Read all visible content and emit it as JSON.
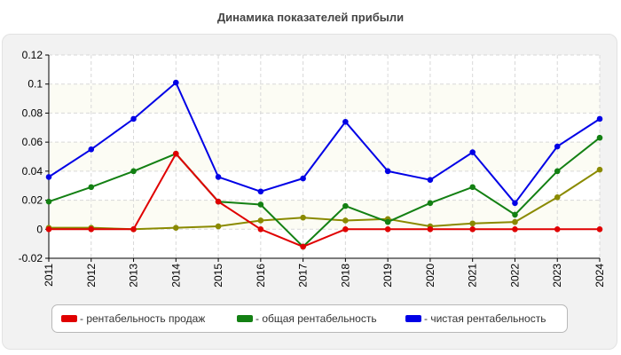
{
  "chart_data": {
    "type": "line",
    "title": "Динамика показателей прибыли",
    "xlabel": "",
    "ylabel": "",
    "x": [
      "2011",
      "2012",
      "2013",
      "2014",
      "2015",
      "2016",
      "2017",
      "2018",
      "2019",
      "2020",
      "2021",
      "2022",
      "2023",
      "2024"
    ],
    "y_ticks": [
      "0.12",
      "0.1",
      "0.08",
      "0.06",
      "0.04",
      "0.02",
      "0",
      "-0.02"
    ],
    "ylim": [
      -0.02,
      0.12
    ],
    "grid": true,
    "legend_position": "bottom",
    "series": [
      {
        "name": "- рентабельность продаж",
        "color": "#e00000",
        "values": [
          0.0,
          0.0,
          0.0,
          0.052,
          0.019,
          0.0,
          -0.012,
          0.0,
          0.0,
          0.0,
          0.0,
          0.0,
          0.0,
          0.0
        ]
      },
      {
        "name": "- общая рентабельность",
        "color": "#138013",
        "values": [
          0.019,
          0.029,
          0.04,
          0.052,
          0.019,
          0.017,
          -0.012,
          0.016,
          0.005,
          0.018,
          0.029,
          0.01,
          0.04,
          0.063
        ]
      },
      {
        "name": "- чистая рентабельность",
        "color": "#0000e6",
        "values": [
          0.036,
          0.055,
          0.076,
          0.101,
          0.036,
          0.026,
          0.035,
          0.074,
          0.04,
          0.034,
          0.053,
          0.018,
          0.057,
          0.076
        ]
      },
      {
        "name": "",
        "color": "#8a8a00",
        "values": [
          0.001,
          0.001,
          0.0,
          0.001,
          0.002,
          0.006,
          0.008,
          0.006,
          0.007,
          0.002,
          0.004,
          0.005,
          0.022,
          0.041
        ]
      }
    ]
  }
}
